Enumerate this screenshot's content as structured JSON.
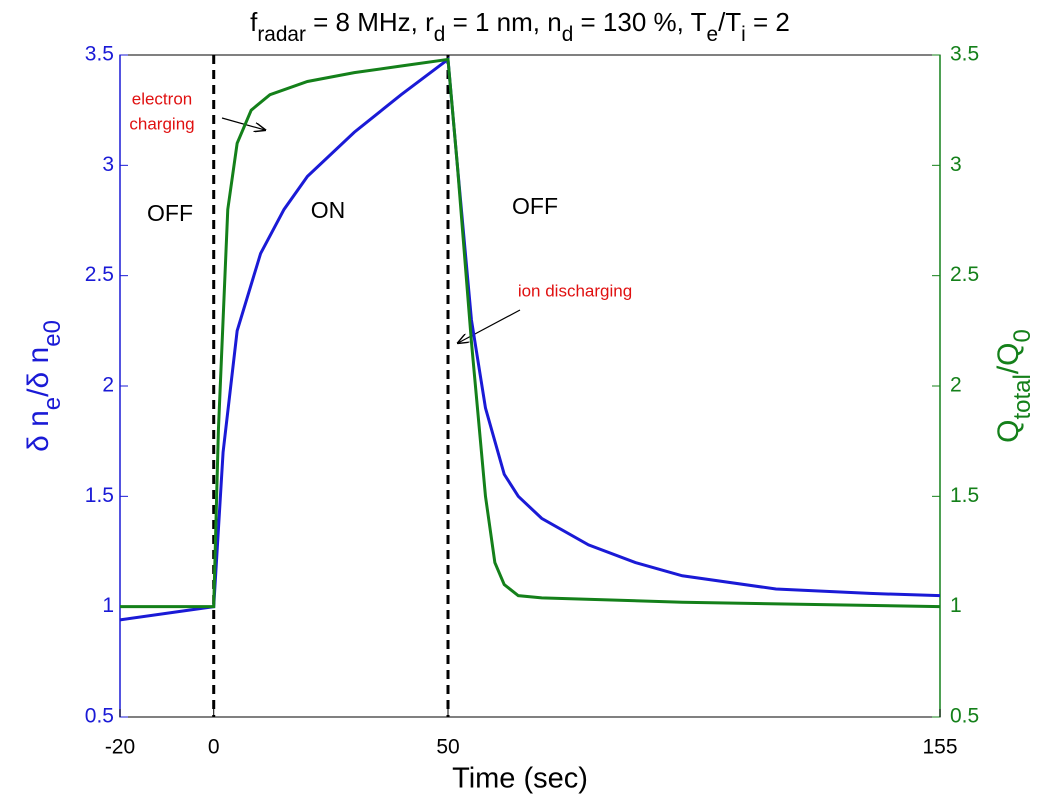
{
  "chart_data": {
    "type": "line",
    "title": [
      "f",
      "radar",
      " = 8 MHz, r",
      "d",
      " = 1 nm, n",
      "d",
      " = 130 %, T",
      "e",
      "/T",
      "i",
      " = 2"
    ],
    "xlabel": "Time (sec)",
    "ylabel": [
      "δ n",
      "e",
      "/δ n",
      "e0"
    ],
    "y2label": [
      "Q",
      "total",
      "/Q",
      "0"
    ],
    "xlim": [
      -20,
      155
    ],
    "xticks": [
      -20,
      0,
      50,
      155
    ],
    "ylim": [
      0.5,
      3.5
    ],
    "yticks": [
      0.5,
      1,
      1.5,
      2,
      2.5,
      3,
      3.5
    ],
    "y2lim": [
      0.5,
      3.5
    ],
    "y2ticks": [
      0.5,
      1,
      1.5,
      2,
      2.5,
      3,
      3.5
    ],
    "ycolor": "#1a1ad6",
    "y2color": "#14801a",
    "vlines": [
      0,
      50
    ],
    "annotations": [
      "OFF",
      "ON",
      "OFF",
      "electron",
      "charging",
      "ion discharging"
    ],
    "series": [
      {
        "name": "δ n_e/δ n_e0",
        "color": "#1a1ad6",
        "x": [
          -20,
          0,
          2,
          5,
          10,
          15,
          20,
          30,
          40,
          50,
          52,
          55,
          58,
          62,
          65,
          70,
          80,
          90,
          100,
          120,
          140,
          155
        ],
        "values": [
          0.94,
          1.0,
          1.7,
          2.25,
          2.6,
          2.8,
          2.95,
          3.15,
          3.32,
          3.48,
          3.0,
          2.3,
          1.9,
          1.6,
          1.5,
          1.4,
          1.28,
          1.2,
          1.14,
          1.08,
          1.06,
          1.05
        ]
      },
      {
        "name": "Q_total/Q_0",
        "color": "#14801a",
        "axis": "y2",
        "x": [
          -20,
          0,
          1,
          3,
          5,
          8,
          12,
          20,
          30,
          40,
          50,
          52,
          55,
          58,
          60,
          62,
          65,
          70,
          100,
          155
        ],
        "values": [
          1.0,
          1.0,
          1.8,
          2.8,
          3.1,
          3.25,
          3.32,
          3.38,
          3.42,
          3.45,
          3.48,
          3.0,
          2.2,
          1.5,
          1.2,
          1.1,
          1.05,
          1.04,
          1.02,
          1.0
        ]
      }
    ]
  }
}
